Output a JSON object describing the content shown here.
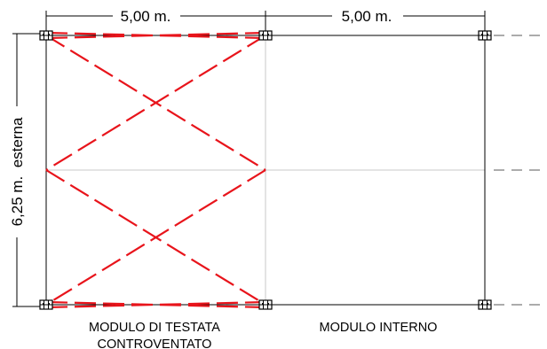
{
  "dimensions": {
    "module_width_left": "5,00 m.",
    "module_width_right": "5,00 m.",
    "height": "6,25 m.  esterna"
  },
  "captions": {
    "left_line1": "MODULO DI TESTATA",
    "left_line2": "CONTROVENTATO",
    "right": "MODULO INTERNO"
  },
  "colors": {
    "bracing": "#e8141b",
    "frame": "#000000",
    "grid": "#c8c8c8",
    "continuation": "#7a7a7a"
  },
  "icons": {
    "node": "base-plate-node-icon",
    "continuation": "dashed-continuation-line"
  }
}
